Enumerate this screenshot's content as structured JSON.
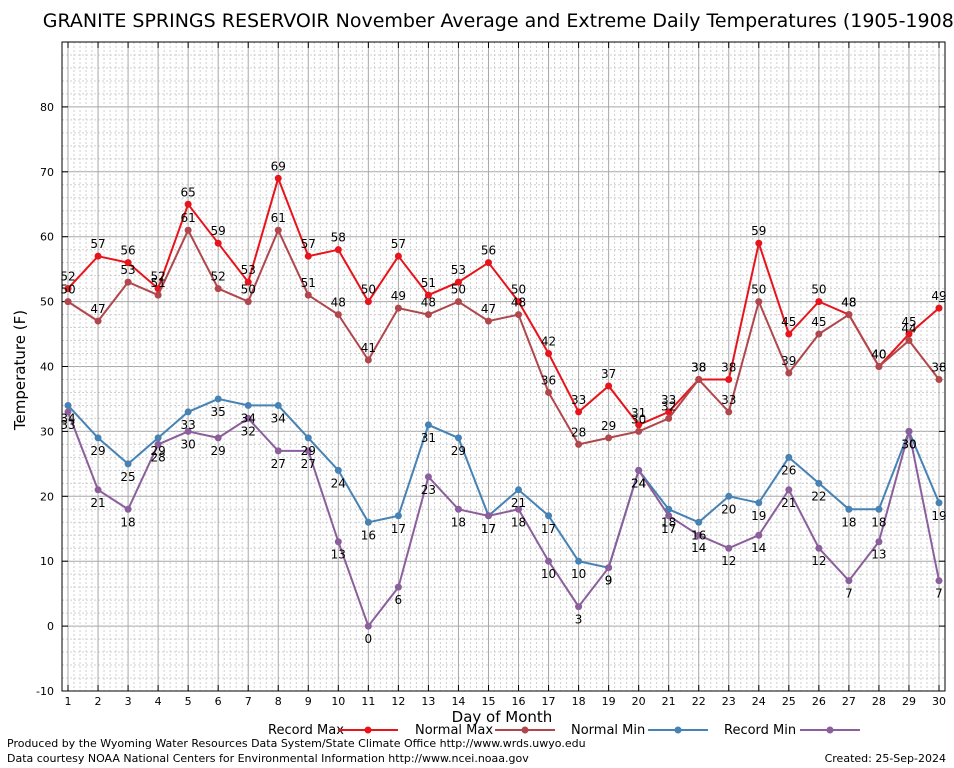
{
  "chart_data": {
    "type": "line",
    "title": "GRANITE SPRINGS RESERVOIR November Average and Extreme Daily Temperatures (1905-1908)",
    "xlabel": "Day of Month",
    "ylabel": "Temperature (F)",
    "ylim": [
      -10,
      90
    ],
    "xlim": [
      0.8,
      30.2
    ],
    "grid": true,
    "legend_placement": "bottom",
    "x": [
      1,
      2,
      3,
      4,
      5,
      6,
      7,
      8,
      9,
      10,
      11,
      12,
      13,
      14,
      15,
      16,
      17,
      18,
      19,
      20,
      21,
      22,
      23,
      24,
      25,
      26,
      27,
      28,
      29,
      30
    ],
    "yticks": [
      -10,
      0,
      10,
      20,
      30,
      40,
      50,
      60,
      70,
      80
    ],
    "series": [
      {
        "name": "Record Max",
        "color": "#e8141c",
        "values": [
          52,
          57,
          56,
          52,
          65,
          59,
          53,
          69,
          57,
          58,
          50,
          57,
          51,
          53,
          56,
          50,
          42,
          33,
          37,
          31,
          33,
          38,
          38,
          59,
          45,
          50,
          48,
          40,
          45,
          49
        ]
      },
      {
        "name": "Normal Max",
        "color": "#b0474c",
        "values": [
          50,
          47,
          53,
          51,
          61,
          52,
          50,
          61,
          51,
          48,
          41,
          49,
          48,
          50,
          47,
          48,
          36,
          28,
          29,
          30,
          32,
          38,
          33,
          50,
          39,
          45,
          48,
          40,
          44,
          38
        ]
      },
      {
        "name": "Normal Min",
        "color": "#4682b4",
        "values": [
          34,
          29,
          25,
          29,
          33,
          35,
          34,
          34,
          29,
          24,
          16,
          17,
          31,
          29,
          17,
          21,
          17,
          10,
          9,
          24,
          18,
          16,
          20,
          19,
          26,
          22,
          18,
          18,
          30,
          19
        ]
      },
      {
        "name": "Record Min",
        "color": "#8b5f9b",
        "values": [
          33,
          21,
          18,
          28,
          30,
          29,
          32,
          27,
          27,
          13,
          0,
          6,
          23,
          18,
          17,
          18,
          10,
          3,
          9,
          24,
          17,
          14,
          12,
          14,
          21,
          12,
          7,
          13,
          30,
          7
        ]
      }
    ]
  },
  "footer": {
    "produced_by": "Produced by the Wyoming Water Resources Data System/State Climate Office http://www.wrds.uwyo.edu",
    "data_courtesy": "Data courtesy NOAA National Centers for Environmental Information http://www.ncei.noaa.gov",
    "created": "Created: 25-Sep-2024"
  }
}
